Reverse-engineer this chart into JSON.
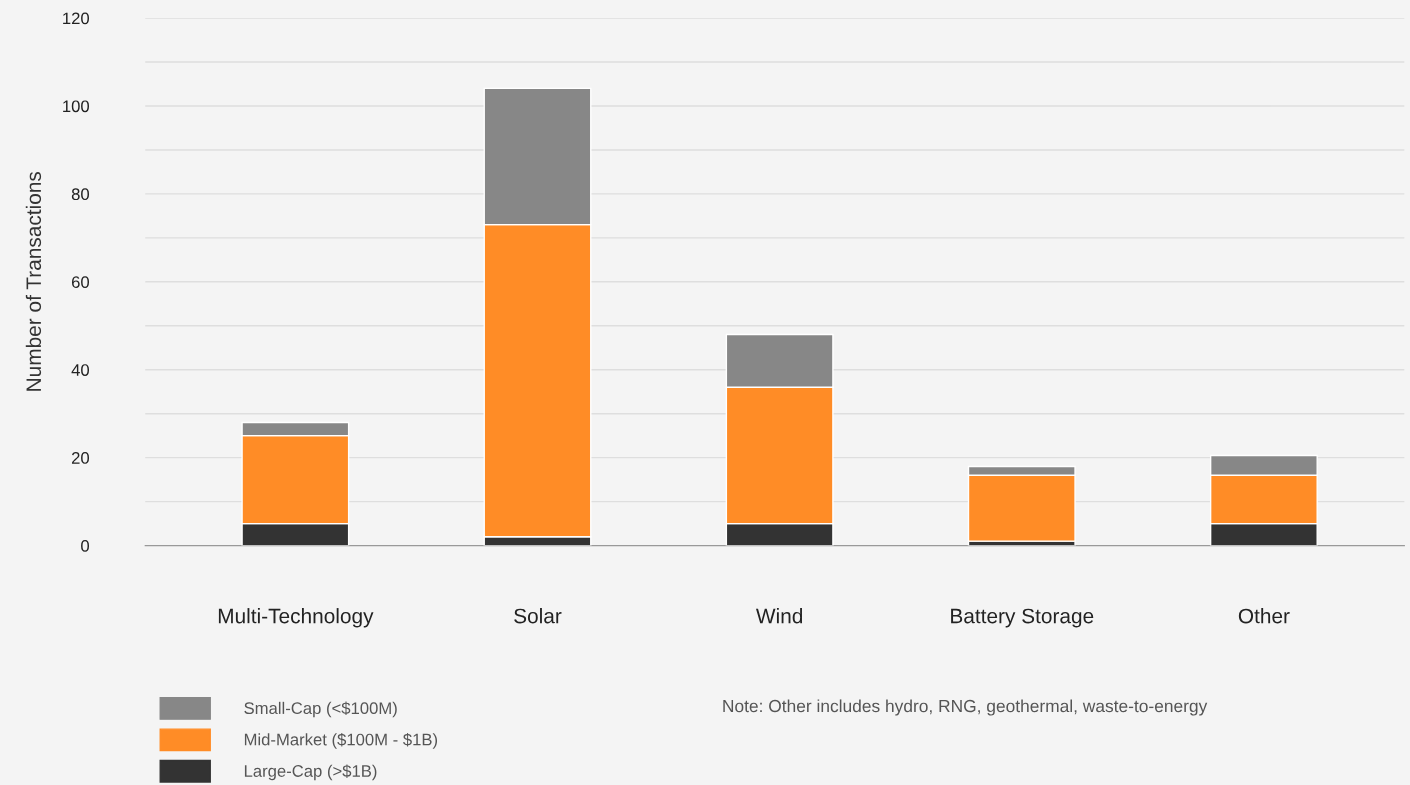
{
  "chart_data": {
    "type": "bar",
    "stacked": true,
    "ylabel": "Number of Transactions",
    "categories": [
      "Multi-Technology",
      "Solar",
      "Wind",
      "Battery Storage",
      "Other"
    ],
    "series": [
      {
        "name": "Large-Cap (>$1B)",
        "color": "#333333",
        "values": [
          5,
          2,
          5,
          1,
          5
        ]
      },
      {
        "name": "Mid-Market ($100M - $1B)",
        "color": "#ff8c26",
        "values": [
          20,
          71,
          31,
          15,
          11
        ]
      },
      {
        "name": "Small-Cap (<$100M)",
        "color": "#878787",
        "values": [
          3,
          31,
          12,
          2,
          4.5
        ]
      }
    ],
    "ylim": [
      0,
      120
    ],
    "yticks": [
      0,
      {
        "value": 10,
        "label": null
      },
      20,
      {
        "value": 30,
        "label": null
      },
      40,
      {
        "value": 50,
        "label": null
      },
      60,
      {
        "value": 70,
        "label": null
      },
      80,
      {
        "value": 90,
        "label": null
      },
      100,
      {
        "value": 110,
        "label": null
      },
      120
    ],
    "grid": "y",
    "legend": "bottom left",
    "annotations": [
      "Note: Other includes hydro, RNG, geothermal, waste-to-energy"
    ]
  }
}
